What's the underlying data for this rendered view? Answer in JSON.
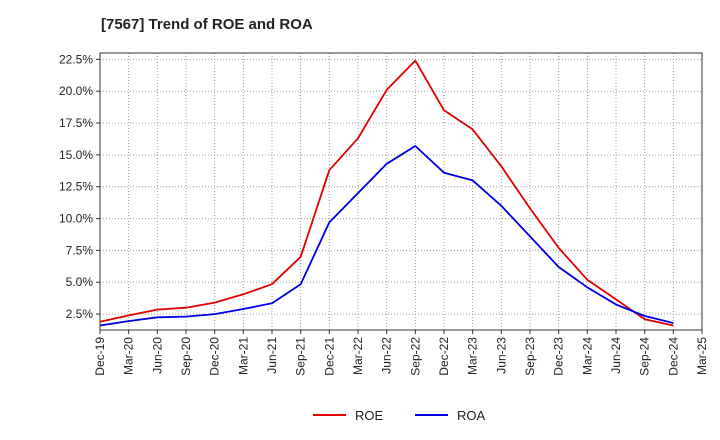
{
  "chart_data": {
    "type": "line",
    "title": "[7567]  Trend of ROE and ROA",
    "xlabel": "",
    "ylabel": "",
    "categories": [
      "Dec-19",
      "Mar-20",
      "Jun-20",
      "Sep-20",
      "Dec-20",
      "Mar-21",
      "Jun-21",
      "Sep-21",
      "Dec-21",
      "Mar-22",
      "Jun-22",
      "Sep-22",
      "Dec-22",
      "Mar-23",
      "Jun-23",
      "Sep-23",
      "Dec-23",
      "Mar-24",
      "Jun-24",
      "Sep-24",
      "Dec-24",
      "Mar-25"
    ],
    "ylim": [
      1.25,
      23.0
    ],
    "yticks": [
      2.5,
      5.0,
      7.5,
      10.0,
      12.5,
      15.0,
      17.5,
      20.0,
      22.5
    ],
    "ytick_labels": [
      "2.5%",
      "5.0%",
      "7.5%",
      "10.0%",
      "12.5%",
      "15.0%",
      "17.5%",
      "20.0%",
      "22.5%"
    ],
    "grid": true,
    "legend_position": "bottom-center",
    "series": [
      {
        "name": "ROE",
        "color": "#e00000",
        "values": [
          1.9,
          2.4,
          2.85,
          3.0,
          3.4,
          4.05,
          4.85,
          7.0,
          13.8,
          16.3,
          20.1,
          22.4,
          18.5,
          17.0,
          14.1,
          10.8,
          7.7,
          5.2,
          3.65,
          2.1,
          1.6,
          null
        ]
      },
      {
        "name": "ROA",
        "color": "#0000e0",
        "values": [
          1.6,
          1.95,
          2.25,
          2.3,
          2.5,
          2.9,
          3.35,
          4.85,
          9.7,
          12.0,
          14.3,
          15.7,
          13.6,
          13.0,
          11.0,
          8.6,
          6.2,
          4.6,
          3.25,
          2.35,
          1.8,
          null
        ]
      }
    ]
  }
}
